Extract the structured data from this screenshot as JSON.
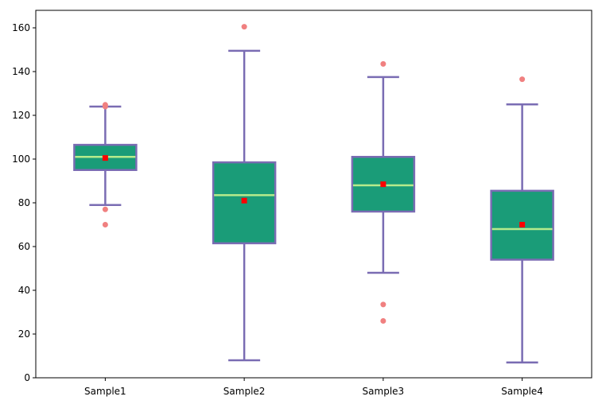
{
  "chart_data": {
    "type": "boxplot",
    "title": "",
    "xlabel": "",
    "ylabel": "",
    "ylim": [
      0,
      168
    ],
    "yticks": [
      0,
      20,
      40,
      60,
      80,
      100,
      120,
      140,
      160
    ],
    "grid": false,
    "categories": [
      "Sample1",
      "Sample2",
      "Sample3",
      "Sample4"
    ],
    "boxes": [
      {
        "whisker_low": 79,
        "q1": 95,
        "median": 101,
        "q3": 106.5,
        "whisker_high": 124,
        "mean": 100.5,
        "outliers": [
          70,
          77,
          124,
          124.8
        ]
      },
      {
        "whisker_low": 8,
        "q1": 61.5,
        "median": 83.5,
        "q3": 98.5,
        "whisker_high": 149.5,
        "mean": 81,
        "outliers": [
          160.5
        ]
      },
      {
        "whisker_low": 48,
        "q1": 76,
        "median": 88,
        "q3": 101,
        "whisker_high": 137.5,
        "mean": 88.5,
        "outliers": [
          26,
          33.5,
          143.5
        ]
      },
      {
        "whisker_low": 7,
        "q1": 54,
        "median": 68,
        "q3": 85.5,
        "whisker_high": 125,
        "mean": 70,
        "outliers": [
          136.5
        ]
      }
    ],
    "colors": {
      "box_fill": "#1a9c78",
      "box_edge": "#7a6cb3",
      "whisker": "#7a6cb3",
      "median": "#b6eb8c",
      "mean_marker": "#ff0000",
      "outlier": "#f08080"
    }
  }
}
